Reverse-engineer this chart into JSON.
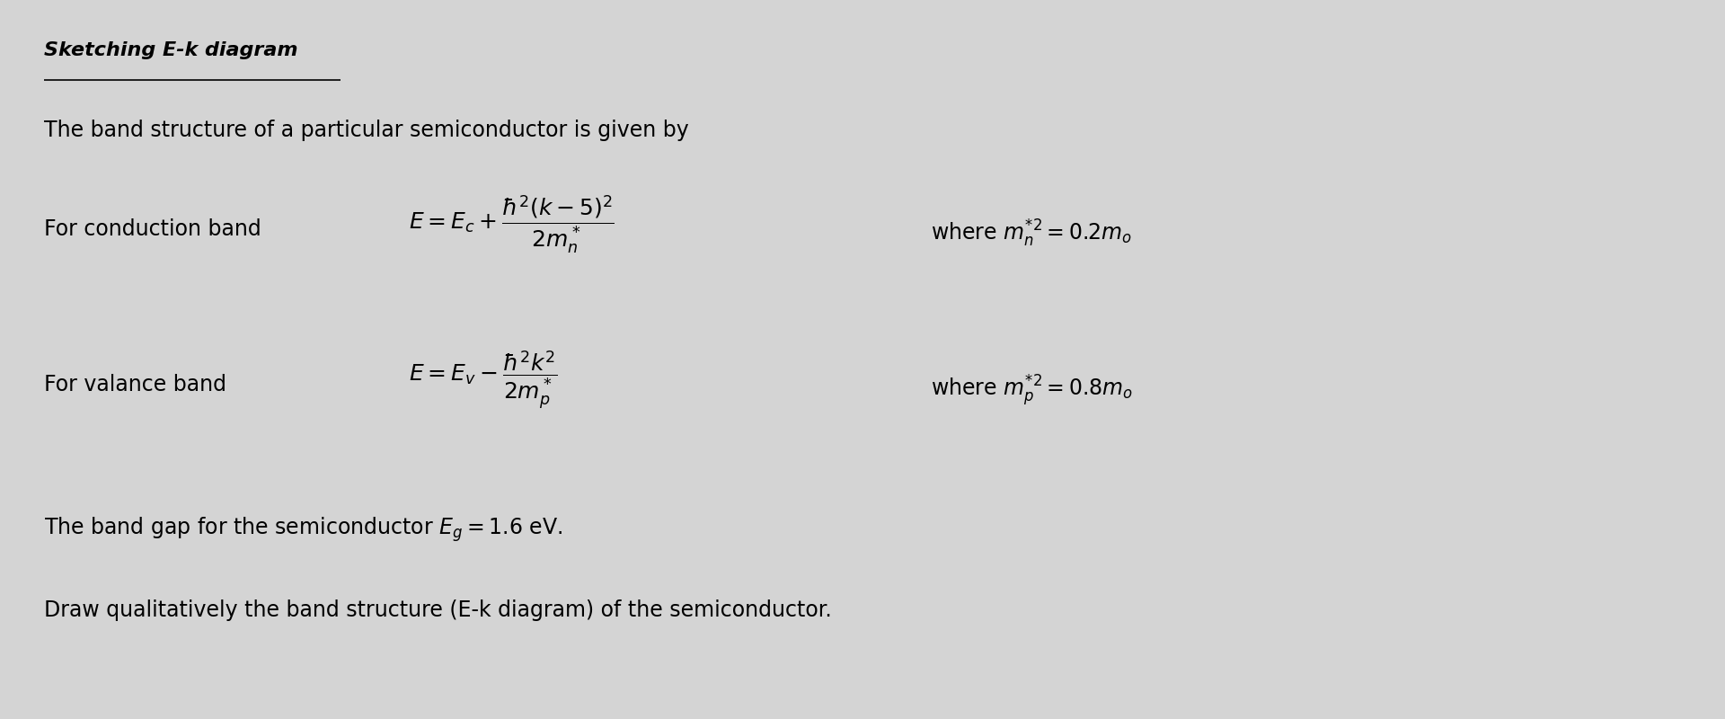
{
  "background_color": "#d4d4d4",
  "title": "Sketching E-k diagram",
  "title_fontsize": 16,
  "body_fontsize": 17,
  "line1": "The band structure of a particular semiconductor is given by",
  "line2_label": "For conduction band",
  "line2_eq": "$E = E_c + \\dfrac{\\hbar^2(k-5)^2}{2m_n^*}$",
  "line2_where": "where $m_n^{*2} = 0.2m_o$",
  "line3_label": "For valance band",
  "line3_eq": "$E = E_v - \\dfrac{\\hbar^2 k^2}{2m_p^*}$",
  "line3_where": "where $m_p^{*2} = 0.8m_o$",
  "line4": "The band gap for the semiconductor $E_g = 1.6$ eV.",
  "line5": "Draw qualitatively the band structure (E-k diagram) of the semiconductor."
}
